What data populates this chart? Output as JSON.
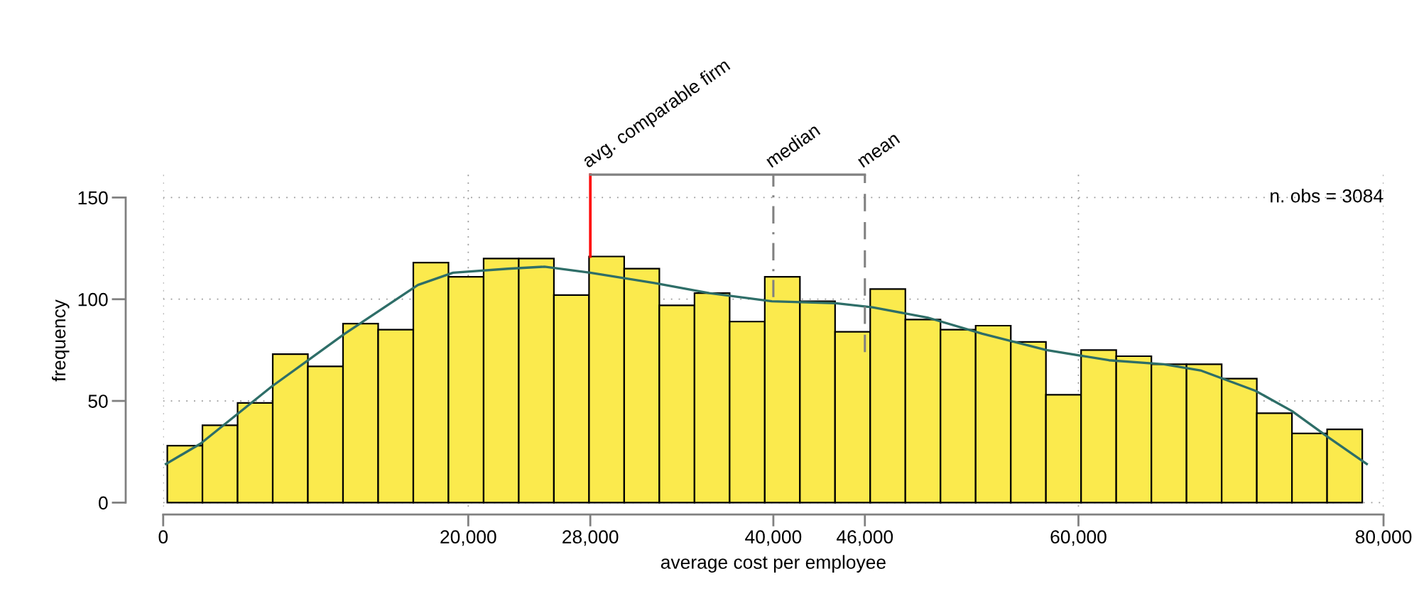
{
  "chart_data": {
    "type": "histogram",
    "xlabel": "average cost per employee",
    "ylabel": "frequency",
    "bins": [
      270,
      2574,
      4878,
      7182,
      9486,
      11790,
      14094,
      16398,
      18702,
      21006,
      23310,
      25614,
      27918,
      30222,
      32526,
      34830,
      37134,
      39438,
      41742,
      44046,
      46350,
      48654,
      50958,
      53262,
      55566,
      57870,
      60174,
      62478,
      64782,
      67086,
      69390,
      71694,
      73998,
      76302,
      78606
    ],
    "series": [
      {
        "color": "#fbea4d",
        "values": [
          28,
          38,
          49,
          73,
          67,
          88,
          85,
          118,
          111,
          120,
          120,
          102,
          121,
          115,
          97,
          103,
          89,
          111,
          99,
          84,
          105,
          90,
          85,
          87,
          79,
          53,
          75,
          72,
          68,
          68,
          61,
          44,
          34,
          36
        ]
      },
      {
        "type": "line",
        "color": "#2e6e68",
        "x": [
          180,
          2450,
          7100,
          11900,
          16700,
          19000,
          22600,
          25000,
          28000,
          32200,
          35800,
          39900,
          44100,
          46500,
          50100,
          53700,
          57900,
          62000,
          65600,
          68000,
          71600,
          74000,
          76400,
          78900
        ],
        "values": [
          19,
          29,
          57,
          83,
          107,
          113,
          115,
          116,
          113,
          108,
          103,
          99,
          98,
          96,
          91,
          83,
          75,
          70,
          68,
          65,
          55,
          45,
          32,
          19
        ]
      }
    ],
    "xlim": [
      0,
      80000
    ],
    "ylim": [
      0,
      150
    ],
    "xticks": [
      0,
      {
        "value": 20000,
        "label": "20,000"
      },
      {
        "value": 28000,
        "label": "28,000"
      },
      {
        "value": 40000,
        "label": "40,000"
      },
      {
        "value": 46000,
        "label": "46,000"
      },
      {
        "value": 60000,
        "label": "60,000"
      },
      {
        "value": 80000,
        "label": "80,000"
      }
    ],
    "yticks": [
      0,
      50,
      100,
      150
    ],
    "grid": true,
    "ref_lines": [
      {
        "axis": "x",
        "value": 28000,
        "label": "avg. comparable firm",
        "color": "#ff0000",
        "line_style": "solid"
      },
      {
        "axis": "x",
        "value": 40000,
        "label": "median",
        "color": "#808080",
        "line_style": "dashdot"
      },
      {
        "axis": "x",
        "value": 46000,
        "label": "mean",
        "color": "#808080",
        "line_style": "dashed"
      }
    ],
    "annotations": [
      "n. obs = 3084"
    ]
  }
}
